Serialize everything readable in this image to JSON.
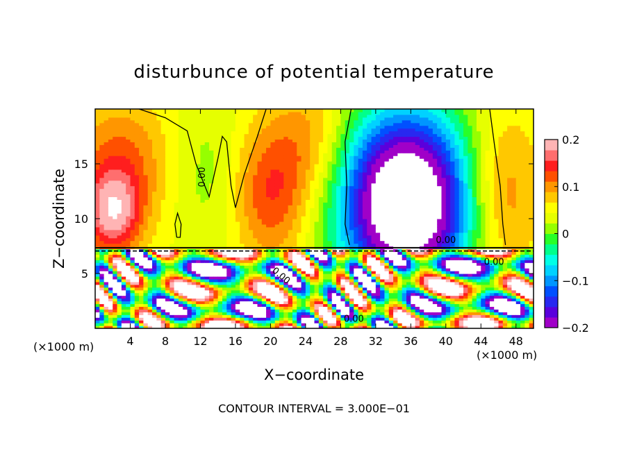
{
  "chart_data": {
    "type": "heatmap",
    "title": "disturbunce of potential temperature",
    "xlabel": "X−coordinate",
    "ylabel": "Z−coordinate",
    "x_unit_left": "(×1000 m)",
    "x_unit_right": "(×1000 m)",
    "xlim": [
      0,
      50
    ],
    "ylim": [
      0,
      20
    ],
    "xticks": [
      "4",
      "8",
      "12",
      "16",
      "20",
      "24",
      "28",
      "32",
      "36",
      "40",
      "44",
      "48"
    ],
    "xtick_values": [
      4,
      8,
      12,
      16,
      20,
      24,
      28,
      32,
      36,
      40,
      44,
      48
    ],
    "yticks": [
      "5",
      "10",
      "15"
    ],
    "ytick_values": [
      5,
      10,
      15
    ],
    "colorbar": {
      "range": [
        -0.2,
        0.2
      ],
      "tick_labels": [
        "0.2",
        "0.1",
        "0",
        "−0.1",
        "−0.2"
      ],
      "tick_values": [
        0.2,
        0.1,
        0,
        -0.1,
        -0.2
      ],
      "colors": [
        "#a000c8",
        "#5a00dc",
        "#2828f0",
        "#0050ff",
        "#0096ff",
        "#00d2ff",
        "#00ffe6",
        "#00ff8c",
        "#28ff28",
        "#96ff00",
        "#e6ff00",
        "#ffff00",
        "#ffc800",
        "#ff9600",
        "#ff5000",
        "#ff1e1e",
        "#ff6e6e",
        "#ffb4b4"
      ]
    },
    "contour_labels": [
      "0.00",
      "0.00",
      "0.00",
      "0.00",
      "0.00"
    ],
    "annotation": "CONTOUR INTERVAL = 3.000E−01"
  }
}
